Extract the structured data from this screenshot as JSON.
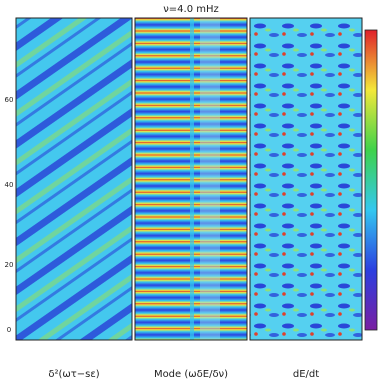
{
  "title": "ν=4.0 mHz",
  "panels": [
    {
      "label": "δ²(ωτ−sε)"
    },
    {
      "label": "Mode (ωδE/δν)"
    },
    {
      "label": "dE/dt"
    }
  ],
  "y_axis": {
    "ticks": [
      "60",
      "40",
      "20",
      "0"
    ]
  }
}
